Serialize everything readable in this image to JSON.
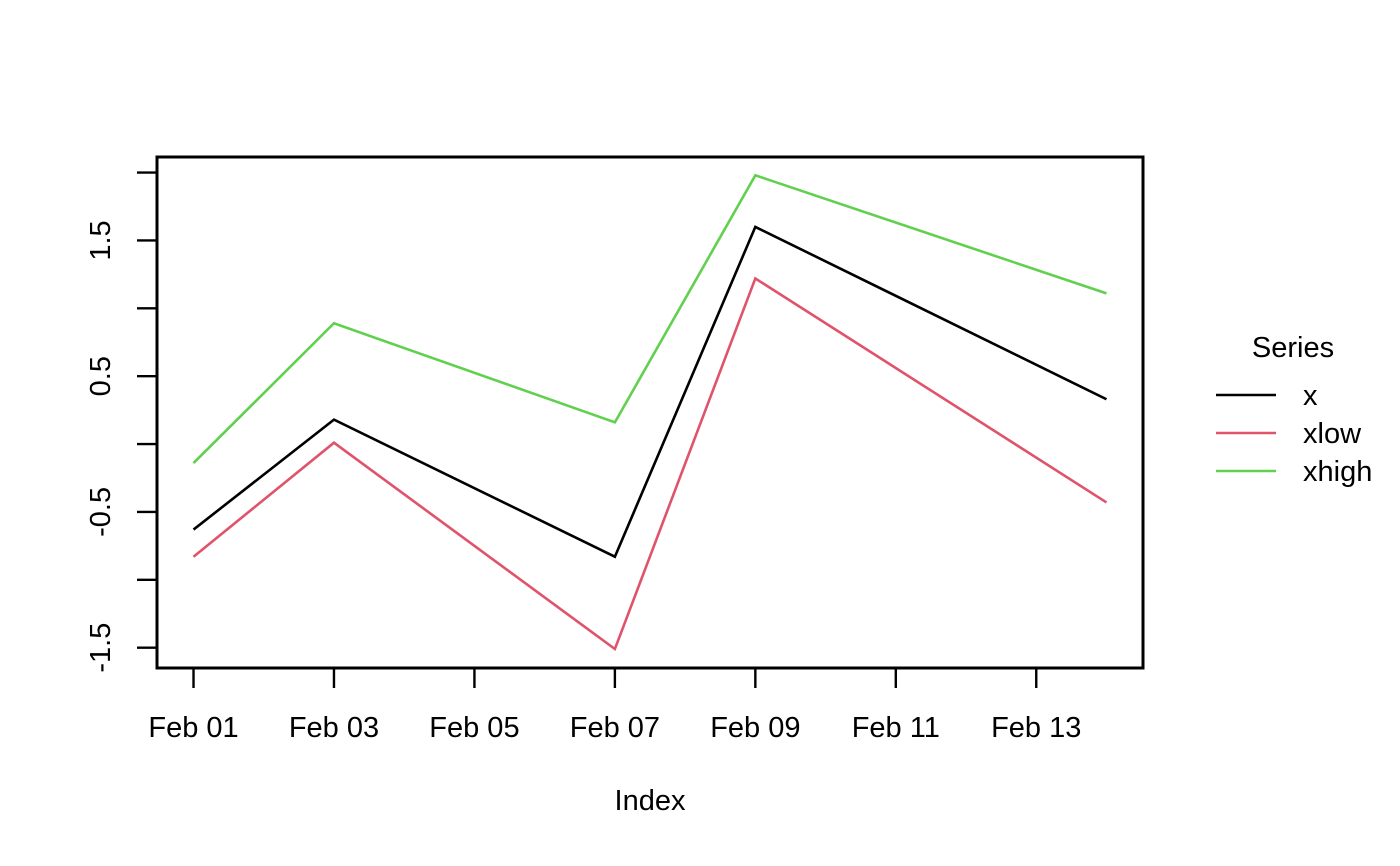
{
  "chart_data": {
    "type": "line",
    "title": "",
    "xlabel": "Index",
    "ylabel": "",
    "grid": false,
    "x_unit": "day of February",
    "x": [
      1,
      3,
      7,
      9,
      14
    ],
    "x_dates": [
      "Feb 01",
      "Feb 03",
      "Feb 07",
      "Feb 09",
      "Feb 14"
    ],
    "series": [
      {
        "name": "x",
        "color": "#000000",
        "values": [
          -0.63,
          0.18,
          -0.83,
          1.6,
          0.33
        ]
      },
      {
        "name": "xlow",
        "color": "#DF536B",
        "values": [
          -0.83,
          0.01,
          -1.51,
          1.22,
          -0.43
        ]
      },
      {
        "name": "xhigh",
        "color": "#61D04F",
        "values": [
          -0.14,
          0.89,
          0.16,
          1.98,
          1.11
        ]
      }
    ],
    "xlim": [
      0.48,
      14.52
    ],
    "ylim": [
      -1.65,
      2.115
    ],
    "x_ticks": [
      {
        "pos": 1,
        "label": "Feb 01"
      },
      {
        "pos": 3,
        "label": "Feb 03"
      },
      {
        "pos": 5,
        "label": "Feb 05"
      },
      {
        "pos": 7,
        "label": "Feb 07"
      },
      {
        "pos": 9,
        "label": "Feb 09"
      },
      {
        "pos": 11,
        "label": "Feb 11"
      },
      {
        "pos": 13,
        "label": "Feb 13"
      }
    ],
    "y_ticks": [
      {
        "pos": 2.0,
        "label": ""
      },
      {
        "pos": 1.5,
        "label": "1.5"
      },
      {
        "pos": 1.0,
        "label": ""
      },
      {
        "pos": 0.5,
        "label": "0.5"
      },
      {
        "pos": 0.0,
        "label": ""
      },
      {
        "pos": -0.5,
        "label": "-0.5"
      },
      {
        "pos": -1.0,
        "label": ""
      },
      {
        "pos": -1.5,
        "label": "-1.5"
      }
    ],
    "legend": {
      "title": "Series",
      "position": "right"
    },
    "colors": {
      "foreground": "#000000",
      "background": "#ffffff"
    }
  }
}
